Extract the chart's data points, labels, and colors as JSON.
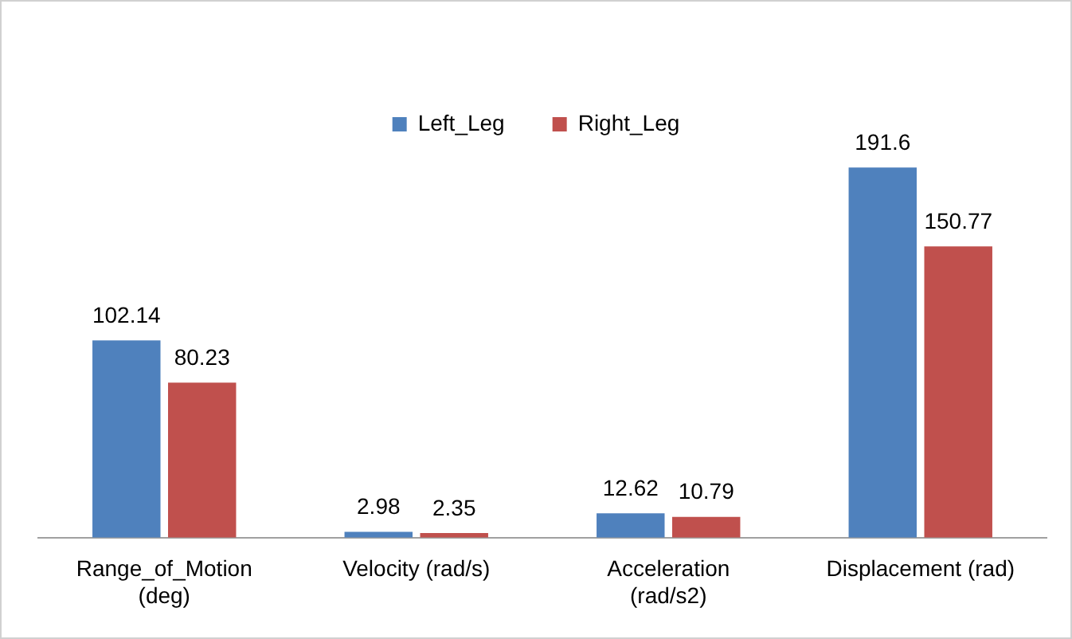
{
  "chart_data": {
    "type": "bar",
    "categories": [
      "Range_of_Motion (deg)",
      "Velocity (rad/s)",
      "Acceleration (rad/s2)",
      "Displacement (rad)"
    ],
    "series": [
      {
        "name": "Left_Leg",
        "color": "#4f81bd",
        "values": [
          102.14,
          2.98,
          12.62,
          191.6
        ]
      },
      {
        "name": "Right_Leg",
        "color": "#c0504d",
        "values": [
          80.23,
          2.35,
          10.79,
          150.77
        ]
      }
    ],
    "relative": false,
    "data_labels": true,
    "grid": false,
    "legend": "top"
  }
}
